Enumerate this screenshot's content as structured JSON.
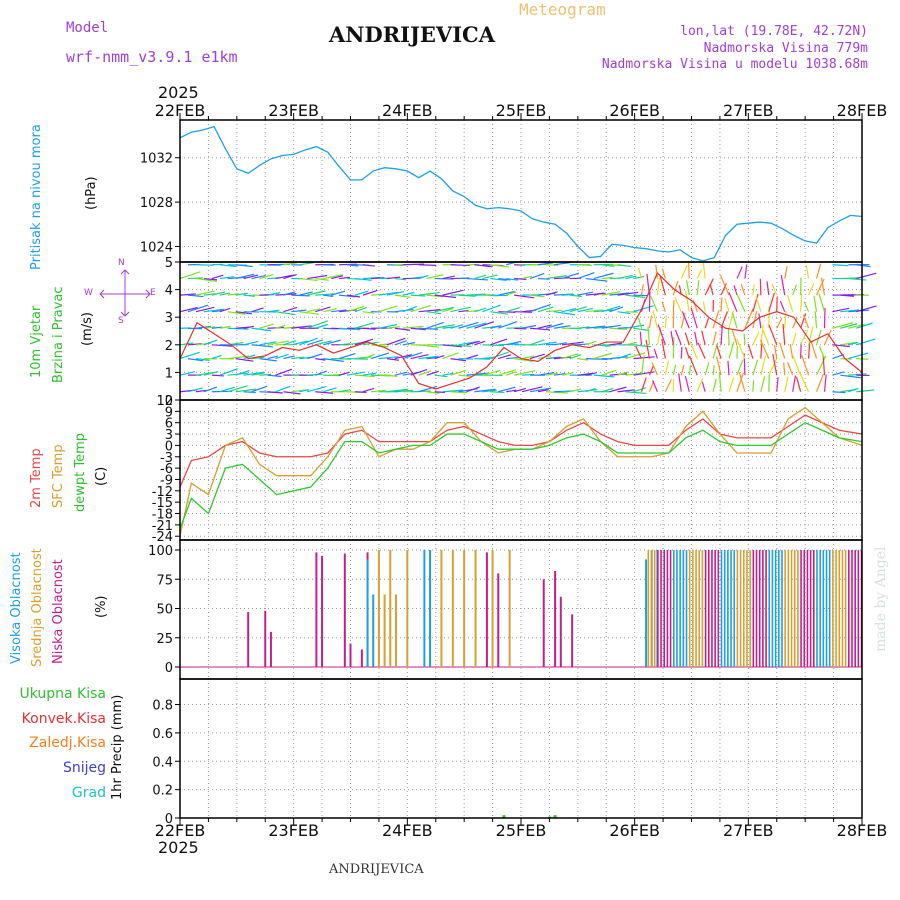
{
  "header": {
    "model_label": "Model",
    "model_name": "wrf-nmm_v3.9.1  e1km",
    "title": "ANDRIJEVICA",
    "meteogram": "Meteogram",
    "lonlat": "lon,lat (19.78E, 42.72N)",
    "elevation": "Nadmorska Visina 779m",
    "model_elevation": "Nadmorska Visina u modelu 1038.68m",
    "year": "2025",
    "footer_station": "ANDRIJEVICA",
    "watermark": "made by Angel"
  },
  "time_axis": {
    "labels": [
      "22FEB",
      "23FEB",
      "24FEB",
      "25FEB",
      "26FEB",
      "27FEB",
      "28FEB"
    ],
    "year": "2025"
  },
  "colors": {
    "pressure": "#1fa0e6",
    "t2m": "#e84848",
    "tsfc": "#d4a032",
    "dewpt": "#30c830",
    "cloud_high": "#20a0e0",
    "cloud_mid": "#d8a030",
    "cloud_low": "#c0208c",
    "precip_total": "#30c030",
    "precip_conv": "#e83030",
    "precip_frz": "#f08020",
    "precip_snow": "#4040d0",
    "precip_hail": "#20c0c0",
    "wind_speed": "#e03030"
  },
  "chart_data": [
    {
      "type": "line",
      "title": "",
      "labels": [
        "Pritisak na nivou mora",
        "(hPa)"
      ],
      "ylim": [
        1022.6,
        1035.4
      ],
      "yticks": [
        "1024",
        "1028",
        "1032"
      ],
      "grid": true,
      "series": [
        {
          "name": "Pritisak na nivou mora",
          "x": [
            0,
            0.1,
            0.2,
            0.3,
            0.4,
            0.5,
            0.6,
            0.7,
            0.8,
            0.9,
            1.0,
            1.1,
            1.2,
            1.3,
            1.4,
            1.5,
            1.6,
            1.7,
            1.8,
            1.9,
            2.0,
            2.1,
            2.2,
            2.3,
            2.4,
            2.5,
            2.6,
            2.7,
            2.8,
            2.9,
            3.0,
            3.1,
            3.2,
            3.3,
            3.4,
            3.5,
            3.6,
            3.7,
            3.8,
            3.9,
            4.0,
            4.1,
            4.2,
            4.3,
            4.4,
            4.5,
            4.6,
            4.7,
            4.8,
            4.9,
            5.0,
            5.1,
            5.2,
            5.3,
            5.4,
            5.5,
            5.6,
            5.7,
            5.8,
            5.9,
            6.0
          ],
          "values": [
            1033.8,
            1034.3,
            1034.5,
            1034.8,
            1032.8,
            1031.0,
            1030.6,
            1031.3,
            1031.9,
            1032.2,
            1032.3,
            1032.7,
            1033.0,
            1032.5,
            1031.2,
            1030.0,
            1030.0,
            1030.8,
            1031.1,
            1031.0,
            1030.8,
            1030.2,
            1030.8,
            1030.1,
            1029.0,
            1028.5,
            1027.7,
            1027.4,
            1027.5,
            1027.4,
            1027.2,
            1026.5,
            1026.2,
            1026.0,
            1025.2,
            1024.0,
            1023.0,
            1023.1,
            1024.2,
            1024.1,
            1023.9,
            1023.8,
            1023.6,
            1023.5,
            1023.7,
            1023.0,
            1022.7,
            1023.0,
            1025.0,
            1026.0,
            1026.1,
            1026.2,
            1026.1,
            1025.6,
            1025.0,
            1024.5,
            1024.3,
            1025.7,
            1026.3,
            1026.8,
            1026.7
          ]
        }
      ]
    },
    {
      "type": "line",
      "title": "",
      "labels": [
        "10m Vjetar",
        "Brzina i Pravac",
        "(m/s)",
        "N",
        "W",
        "E",
        "S"
      ],
      "ylim": [
        0,
        5
      ],
      "yticks": [
        "0",
        "1",
        "2",
        "3",
        "4",
        "5"
      ],
      "grid": true,
      "series": [
        {
          "name": "wind speed",
          "x": [
            0,
            0.15,
            0.3,
            0.45,
            0.6,
            0.75,
            0.9,
            1.05,
            1.2,
            1.35,
            1.5,
            1.65,
            1.8,
            1.95,
            2.1,
            2.25,
            2.4,
            2.55,
            2.7,
            2.85,
            3.0,
            3.15,
            3.3,
            3.45,
            3.6,
            3.75,
            3.9,
            4.05,
            4.2,
            4.35,
            4.5,
            4.65,
            4.8,
            4.95,
            5.1,
            5.25,
            5.4,
            5.55,
            5.7,
            5.85,
            6.0
          ],
          "values": [
            1.5,
            2.8,
            2.4,
            2.0,
            1.5,
            1.6,
            1.9,
            1.8,
            2.0,
            1.7,
            1.9,
            2.1,
            1.9,
            1.6,
            0.6,
            0.4,
            0.6,
            0.8,
            1.2,
            1.9,
            1.5,
            1.4,
            1.8,
            2.0,
            1.9,
            2.1,
            2.1,
            3.2,
            4.6,
            4.0,
            3.6,
            3.0,
            2.6,
            2.5,
            3.0,
            3.2,
            3.0,
            2.1,
            2.4,
            1.5,
            1.0
          ]
        }
      ]
    },
    {
      "type": "line",
      "title": "",
      "labels": [
        "2m Temp",
        "SFC Temp",
        "dewpt Temp",
        "(C)"
      ],
      "ylim": [
        -25,
        12
      ],
      "yticks": [
        "12",
        "9",
        "6",
        "3",
        "0",
        "-3",
        "-6",
        "-9",
        "-12",
        "-15",
        "-18",
        "-21",
        "-24"
      ],
      "grid": true,
      "series": [
        {
          "name": "2m Temp",
          "x": [
            0,
            0.1,
            0.25,
            0.4,
            0.55,
            0.7,
            0.85,
            1.0,
            1.15,
            1.3,
            1.45,
            1.6,
            1.75,
            1.9,
            2.05,
            2.2,
            2.35,
            2.5,
            2.65,
            2.8,
            2.95,
            3.1,
            3.25,
            3.4,
            3.55,
            3.7,
            3.85,
            4.0,
            4.15,
            4.3,
            4.45,
            4.6,
            4.75,
            4.9,
            5.05,
            5.2,
            5.35,
            5.5,
            5.65,
            5.8,
            6.0
          ],
          "values": [
            -11,
            -4,
            -3,
            0,
            1,
            -2,
            -3,
            -3,
            -3,
            -2,
            3,
            4,
            1,
            1,
            1,
            1,
            4,
            5,
            3,
            1,
            0,
            0,
            1,
            4,
            6,
            3,
            1,
            0,
            0,
            0,
            4,
            7,
            3,
            2,
            2,
            2,
            5,
            8,
            6,
            4,
            3
          ]
        },
        {
          "name": "SFC Temp",
          "x": [
            0,
            0.1,
            0.25,
            0.4,
            0.55,
            0.7,
            0.85,
            1.0,
            1.15,
            1.3,
            1.45,
            1.6,
            1.75,
            1.9,
            2.05,
            2.2,
            2.35,
            2.5,
            2.65,
            2.8,
            2.95,
            3.1,
            3.25,
            3.4,
            3.55,
            3.7,
            3.85,
            4.0,
            4.15,
            4.3,
            4.45,
            4.6,
            4.75,
            4.9,
            5.05,
            5.2,
            5.35,
            5.5,
            5.65,
            5.8,
            6.0
          ],
          "values": [
            -24,
            -10,
            -13,
            0,
            2,
            -5,
            -8,
            -8,
            -8,
            -3,
            4,
            5,
            -3,
            -1,
            -1,
            1,
            6,
            6,
            1,
            -2,
            -1,
            -1,
            1,
            5,
            7,
            1,
            -3,
            -3,
            -3,
            -2,
            5,
            9,
            3,
            -2,
            -2,
            -2,
            7,
            10,
            6,
            2,
            0
          ]
        },
        {
          "name": "dewpt Temp",
          "x": [
            0,
            0.1,
            0.25,
            0.4,
            0.55,
            0.7,
            0.85,
            1.0,
            1.15,
            1.3,
            1.45,
            1.6,
            1.75,
            1.9,
            2.05,
            2.2,
            2.35,
            2.5,
            2.65,
            2.8,
            2.95,
            3.1,
            3.25,
            3.4,
            3.55,
            3.7,
            3.85,
            4.0,
            4.15,
            4.3,
            4.45,
            4.6,
            4.75,
            4.9,
            5.05,
            5.2,
            5.35,
            5.5,
            5.65,
            5.8,
            6.0
          ],
          "values": [
            -22,
            -14,
            -18,
            -6,
            -5,
            -9,
            -13,
            -12,
            -11,
            -6,
            1,
            1,
            -2,
            -1,
            0,
            0,
            3,
            3,
            1,
            -1,
            -1,
            -1,
            0,
            2,
            3,
            1,
            -2,
            -2,
            -2,
            -2,
            2,
            4,
            1,
            0,
            0,
            0,
            3,
            6,
            4,
            2,
            1
          ]
        }
      ]
    },
    {
      "type": "bar",
      "title": "",
      "labels": [
        "Visoka Oblacnost",
        "Srednja Oblacnost",
        "Niska Oblacnost",
        "(%)"
      ],
      "ylim": [
        0,
        100
      ],
      "yticks": [
        "0",
        "25",
        "50",
        "75",
        "100"
      ],
      "grid": true,
      "series": [
        {
          "name": "Niska Oblacnost",
          "x": [
            0.6,
            0.75,
            0.8,
            1.2,
            1.25,
            1.45,
            1.5,
            1.6,
            1.65,
            2.7,
            2.8,
            3.2,
            3.3,
            3.35,
            3.45
          ],
          "values": [
            47,
            48,
            30,
            98,
            95,
            97,
            20,
            15,
            98,
            98,
            80,
            75,
            82,
            60,
            45
          ]
        },
        {
          "name": "Srednja Oblacnost",
          "x": [
            1.75,
            1.8,
            1.85,
            1.9,
            2.0,
            2.2,
            2.3,
            2.4,
            2.5,
            2.6,
            2.75,
            2.9
          ],
          "values": [
            100,
            62,
            100,
            62,
            100,
            100,
            100,
            100,
            100,
            100,
            100,
            100
          ]
        },
        {
          "name": "Visoka Oblacnost",
          "x": [
            1.65,
            1.7,
            2.15,
            2.2,
            4.1,
            4.15,
            4.2
          ],
          "values": [
            92,
            62,
            100,
            100,
            92,
            100,
            100
          ]
        }
      ]
    },
    {
      "type": "bar",
      "title": "",
      "labels": [
        "Ukupna Kisa",
        "Konvek.Kisa",
        "Zaledj.Kisa",
        "Snijeg",
        "Grad",
        "1hr Precip (mm)"
      ],
      "ylim": [
        0,
        0.98
      ],
      "yticks": [
        "0",
        "0.2",
        "0.4",
        "0.6",
        "0.8"
      ],
      "grid": true,
      "series": [
        {
          "name": "Ukupna Kisa",
          "x": [
            2.85,
            3.25,
            3.3
          ],
          "values": [
            0.02,
            0.01,
            0.02
          ]
        }
      ]
    }
  ]
}
